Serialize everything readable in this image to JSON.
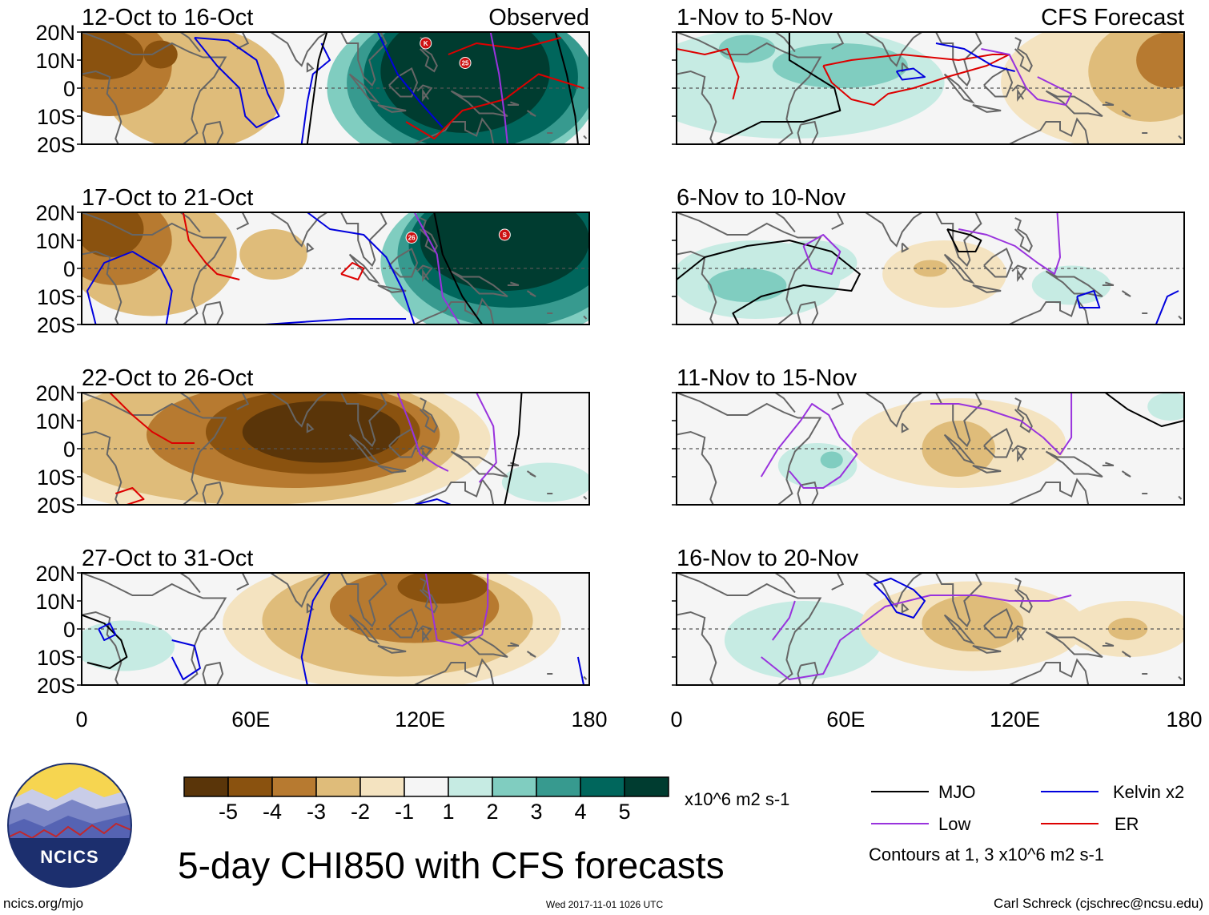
{
  "chart_data": {
    "type": "heatmap",
    "title": "5-day CHI850 with CFS forecasts",
    "variable": "CHI850",
    "units": "x10^6 m2 s-1",
    "column_titles": [
      "Observed",
      "CFS Forecast"
    ],
    "y_ticks": [
      "20N",
      "10N",
      "0",
      "10S",
      "20S"
    ],
    "y_values": [
      20,
      10,
      0,
      -10,
      -20
    ],
    "x_ticks": [
      "0",
      "60E",
      "120E",
      "180"
    ],
    "x_values": [
      0,
      60,
      120,
      180
    ],
    "xlim": [
      0,
      180
    ],
    "ylim": [
      -20,
      20
    ],
    "colorbar": {
      "labels": [
        "-5",
        "-4",
        "-3",
        "-2",
        "-1",
        "1",
        "2",
        "3",
        "4",
        "5"
      ],
      "colors": [
        "#5a3509",
        "#8a520f",
        "#b77a30",
        "#dfbc7a",
        "#f4e3c0",
        "#f5f5f5",
        "#c6ebe3",
        "#80cdc0",
        "#379a8f",
        "#00665c",
        "#003c30"
      ]
    },
    "contours": {
      "legend": [
        {
          "name": "MJO",
          "color": "#000000"
        },
        {
          "name": "Kelvin x2",
          "color": "#0000dd"
        },
        {
          "name": "Low",
          "color": "#9933dd"
        },
        {
          "name": "ER",
          "color": "#dd0000"
        }
      ],
      "note": "Contours at 1, 3 x10^6 m2 s-1"
    },
    "panels": [
      {
        "period": "12-Oct to 16-Oct",
        "column": "Observed",
        "blobs": [
          {
            "x": 40,
            "y": 0,
            "rx": 32,
            "ry": 22,
            "v": -2
          },
          {
            "x": 10,
            "y": 8,
            "rx": 22,
            "ry": 18,
            "v": -3
          },
          {
            "x": 8,
            "y": 12,
            "rx": 14,
            "ry": 9,
            "v": -4
          },
          {
            "x": 28,
            "y": 12,
            "rx": 6,
            "ry": 5,
            "v": -4
          },
          {
            "x": 135,
            "y": 0,
            "rx": 48,
            "ry": 30,
            "v": 2
          },
          {
            "x": 138,
            "y": 2,
            "rx": 44,
            "ry": 28,
            "v": 3
          },
          {
            "x": 138,
            "y": 4,
            "rx": 38,
            "ry": 26,
            "v": 4
          },
          {
            "x": 136,
            "y": 6,
            "rx": 30,
            "ry": 22,
            "v": 5
          }
        ],
        "cyclones": [
          {
            "label": "K",
            "lon": 122,
            "lat": 16
          },
          {
            "label": "25",
            "lon": 136,
            "lat": 9
          }
        ]
      },
      {
        "period": "17-Oct to 21-Oct",
        "column": "Observed",
        "blobs": [
          {
            "x": 25,
            "y": 5,
            "rx": 30,
            "ry": 22,
            "v": -2
          },
          {
            "x": 68,
            "y": 5,
            "rx": 12,
            "ry": 9,
            "v": -2
          },
          {
            "x": 12,
            "y": 10,
            "rx": 20,
            "ry": 16,
            "v": -3
          },
          {
            "x": 10,
            "y": 14,
            "rx": 12,
            "ry": 10,
            "v": -4
          },
          {
            "x": 150,
            "y": 2,
            "rx": 44,
            "ry": 28,
            "v": 2
          },
          {
            "x": 152,
            "y": 5,
            "rx": 40,
            "ry": 26,
            "v": 3
          },
          {
            "x": 152,
            "y": 8,
            "rx": 36,
            "ry": 22,
            "v": 4
          },
          {
            "x": 150,
            "y": 10,
            "rx": 30,
            "ry": 18,
            "v": 5
          }
        ],
        "cyclones": [
          {
            "label": "26",
            "lon": 117,
            "lat": 11
          },
          {
            "label": "S",
            "lon": 150,
            "lat": 12
          }
        ]
      },
      {
        "period": "22-Oct to 26-Oct",
        "column": "Observed",
        "blobs": [
          {
            "x": 60,
            "y": 3,
            "rx": 85,
            "ry": 28,
            "v": -1
          },
          {
            "x": 62,
            "y": 4,
            "rx": 72,
            "ry": 24,
            "v": -2
          },
          {
            "x": 75,
            "y": 5,
            "rx": 52,
            "ry": 19,
            "v": -3
          },
          {
            "x": 82,
            "y": 6,
            "rx": 38,
            "ry": 15,
            "v": -4
          },
          {
            "x": 85,
            "y": 6,
            "rx": 28,
            "ry": 11,
            "v": -5
          },
          {
            "x": 165,
            "y": -12,
            "rx": 16,
            "ry": 7,
            "v": 1
          }
        ],
        "cyclones": []
      },
      {
        "period": "27-Oct to 31-Oct",
        "column": "Observed",
        "blobs": [
          {
            "x": 110,
            "y": 2,
            "rx": 60,
            "ry": 24,
            "v": -1
          },
          {
            "x": 112,
            "y": 3,
            "rx": 48,
            "ry": 20,
            "v": -2
          },
          {
            "x": 118,
            "y": 8,
            "rx": 30,
            "ry": 13,
            "v": -3
          },
          {
            "x": 128,
            "y": 15,
            "rx": 16,
            "ry": 6,
            "v": -4
          },
          {
            "x": 15,
            "y": -6,
            "rx": 18,
            "ry": 9,
            "v": 1
          }
        ],
        "cyclones": []
      },
      {
        "period": "1-Nov to 5-Nov",
        "column": "CFS Forecast",
        "blobs": [
          {
            "x": 40,
            "y": 2,
            "rx": 55,
            "ry": 20,
            "v": 1
          },
          {
            "x": 58,
            "y": 8,
            "rx": 24,
            "ry": 8,
            "v": 2
          },
          {
            "x": 25,
            "y": 14,
            "rx": 10,
            "ry": 5,
            "v": 2
          },
          {
            "x": 160,
            "y": 2,
            "rx": 45,
            "ry": 24,
            "v": -1
          },
          {
            "x": 168,
            "y": 6,
            "rx": 22,
            "ry": 18,
            "v": -2
          },
          {
            "x": 175,
            "y": 10,
            "rx": 12,
            "ry": 10,
            "v": -3
          }
        ],
        "cyclones": []
      },
      {
        "period": "6-Nov to 10-Nov",
        "column": "CFS Forecast",
        "blobs": [
          {
            "x": 28,
            "y": -4,
            "rx": 30,
            "ry": 14,
            "v": 1
          },
          {
            "x": 48,
            "y": 2,
            "rx": 16,
            "ry": 8,
            "v": 1
          },
          {
            "x": 25,
            "y": -6,
            "rx": 14,
            "ry": 6,
            "v": 2
          },
          {
            "x": 140,
            "y": -6,
            "rx": 14,
            "ry": 7,
            "v": 1
          },
          {
            "x": 95,
            "y": -2,
            "rx": 22,
            "ry": 12,
            "v": -1
          },
          {
            "x": 90,
            "y": 0,
            "rx": 6,
            "ry": 3,
            "v": -2
          }
        ],
        "cyclones": []
      },
      {
        "period": "11-Nov to 15-Nov",
        "column": "CFS Forecast",
        "blobs": [
          {
            "x": 100,
            "y": 2,
            "rx": 38,
            "ry": 16,
            "v": -1
          },
          {
            "x": 100,
            "y": 0,
            "rx": 13,
            "ry": 10,
            "v": -2
          },
          {
            "x": 50,
            "y": -6,
            "rx": 14,
            "ry": 8,
            "v": 1
          },
          {
            "x": 55,
            "y": -4,
            "rx": 4,
            "ry": 3,
            "v": 2
          },
          {
            "x": 175,
            "y": 15,
            "rx": 8,
            "ry": 5,
            "v": 1
          }
        ],
        "cyclones": []
      },
      {
        "period": "16-Nov to 20-Nov",
        "column": "CFS Forecast",
        "blobs": [
          {
            "x": 45,
            "y": -4,
            "rx": 28,
            "ry": 14,
            "v": 1
          },
          {
            "x": 105,
            "y": 1,
            "rx": 40,
            "ry": 16,
            "v": -1
          },
          {
            "x": 105,
            "y": 2,
            "rx": 18,
            "ry": 10,
            "v": -2
          },
          {
            "x": 160,
            "y": 0,
            "rx": 22,
            "ry": 10,
            "v": -1
          },
          {
            "x": 160,
            "y": 0,
            "rx": 7,
            "ry": 4,
            "v": -2
          }
        ],
        "cyclones": []
      }
    ]
  },
  "branding": {
    "logo_text": "NCICS",
    "url": "ncics.org/mjo"
  },
  "footer": {
    "timestamp": "Wed 2017-11-01 1026 UTC",
    "author": "Carl Schreck (cjschrec@ncsu.edu)"
  }
}
